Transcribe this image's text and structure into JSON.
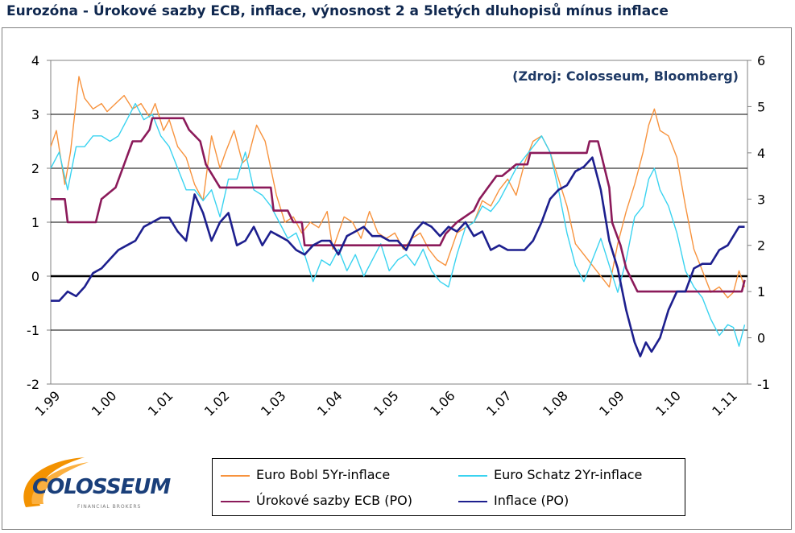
{
  "title": "Eurozóna - Úrokové sazby ECB, inflace, výnosnost 2 a 5letých dluhopisů mínus inflace",
  "source_note": "(Zdroj: Colosseum, Bloomberg)",
  "logo": {
    "text": "COLOSSEUM",
    "subtext": "FINANCIAL BROKERS"
  },
  "colors": {
    "bobl": "#f7933e",
    "schatz": "#3ad3f0",
    "ecb": "#8b1a5a",
    "inflace": "#1d1f8e",
    "title": "#10284f",
    "note": "#1f3a66"
  },
  "chart_data": {
    "type": "line",
    "x_range": [
      1999.0,
      2011.35
    ],
    "x_ticks": [
      "1.99",
      "1.00",
      "1.01",
      "1.02",
      "1.03",
      "1.04",
      "1.05",
      "1.06",
      "1.07",
      "1.08",
      "1.09",
      "1.10",
      "1.11"
    ],
    "x_tick_values": [
      1999,
      2000,
      2001,
      2002,
      2003,
      2004,
      2005,
      2006,
      2007,
      2008,
      2009,
      2010,
      2011
    ],
    "y_left": {
      "range": [
        -2,
        4
      ],
      "ticks": [
        "-2",
        "-1",
        "0",
        "1",
        "2",
        "3",
        "4"
      ],
      "tick_values": [
        -2,
        -1,
        0,
        1,
        2,
        3,
        4
      ]
    },
    "y_right": {
      "range": [
        -1,
        6
      ],
      "ticks": [
        "-1",
        "0",
        "1",
        "2",
        "3",
        "4",
        "5",
        "6"
      ],
      "tick_values": [
        -1,
        0,
        1,
        2,
        3,
        4,
        5,
        6
      ]
    },
    "grid": "horizontal",
    "series": [
      {
        "name": "Euro Bobl 5Yr-inflace",
        "axis": "left",
        "color": "#f7933e",
        "x": [
          1999.0,
          1999.1,
          1999.25,
          1999.35,
          1999.5,
          1999.6,
          1999.75,
          1999.9,
          2000.0,
          2000.15,
          2000.3,
          2000.45,
          2000.6,
          2000.75,
          2000.85,
          2001.0,
          2001.1,
          2001.25,
          2001.4,
          2001.55,
          2001.7,
          2001.85,
          2002.0,
          2002.1,
          2002.25,
          2002.4,
          2002.5,
          2002.65,
          2002.8,
          2002.9,
          2003.0,
          2003.15,
          2003.3,
          2003.45,
          2003.6,
          2003.75,
          2003.9,
          2004.0,
          2004.2,
          2004.35,
          2004.5,
          2004.65,
          2004.8,
          2004.95,
          2005.1,
          2005.25,
          2005.4,
          2005.55,
          2005.7,
          2005.85,
          2006.0,
          2006.2,
          2006.35,
          2006.5,
          2006.65,
          2006.8,
          2006.95,
          2007.1,
          2007.25,
          2007.4,
          2007.55,
          2007.7,
          2007.85,
          2008.0,
          2008.15,
          2008.3,
          2008.45,
          2008.6,
          2008.75,
          2008.9,
          2009.05,
          2009.2,
          2009.35,
          2009.5,
          2009.6,
          2009.7,
          2009.8,
          2009.95,
          2010.1,
          2010.25,
          2010.4,
          2010.55,
          2010.7,
          2010.85,
          2011.0,
          2011.1,
          2011.2,
          2011.3
        ],
        "values": [
          2.4,
          2.7,
          1.7,
          2.3,
          3.7,
          3.3,
          3.1,
          3.2,
          3.05,
          3.2,
          3.35,
          3.1,
          3.2,
          2.95,
          3.2,
          2.7,
          2.9,
          2.4,
          2.2,
          1.7,
          1.4,
          2.6,
          2.0,
          2.3,
          2.7,
          2.1,
          2.2,
          2.8,
          2.5,
          2.0,
          1.5,
          1.0,
          1.1,
          0.8,
          1.0,
          0.9,
          1.2,
          0.5,
          1.1,
          1.0,
          0.7,
          1.2,
          0.8,
          0.7,
          0.8,
          0.5,
          0.7,
          0.8,
          0.5,
          0.3,
          0.2,
          0.8,
          0.9,
          1.0,
          1.4,
          1.3,
          1.6,
          1.8,
          1.5,
          2.1,
          2.5,
          2.6,
          2.3,
          1.8,
          1.3,
          0.6,
          0.4,
          0.2,
          0.0,
          -0.2,
          0.6,
          1.2,
          1.7,
          2.3,
          2.8,
          3.1,
          2.7,
          2.6,
          2.2,
          1.3,
          0.5,
          0.1,
          -0.3,
          -0.2,
          -0.4,
          -0.3,
          0.1,
          -0.2
        ]
      },
      {
        "name": "Euro Schatz 2Yr-inflace",
        "axis": "left",
        "color": "#3ad3f0",
        "x": [
          1999.0,
          1999.15,
          1999.3,
          1999.45,
          1999.6,
          1999.75,
          1999.9,
          2000.05,
          2000.2,
          2000.35,
          2000.5,
          2000.65,
          2000.8,
          2000.95,
          2001.1,
          2001.25,
          2001.4,
          2001.55,
          2001.7,
          2001.85,
          2002.0,
          2002.15,
          2002.3,
          2002.45,
          2002.6,
          2002.75,
          2002.9,
          2003.05,
          2003.2,
          2003.35,
          2003.5,
          2003.65,
          2003.8,
          2003.95,
          2004.1,
          2004.25,
          2004.4,
          2004.55,
          2004.7,
          2004.85,
          2005.0,
          2005.15,
          2005.3,
          2005.45,
          2005.6,
          2005.75,
          2005.9,
          2006.05,
          2006.2,
          2006.35,
          2006.5,
          2006.65,
          2006.8,
          2006.95,
          2007.1,
          2007.25,
          2007.4,
          2007.55,
          2007.7,
          2007.85,
          2008.0,
          2008.15,
          2008.3,
          2008.45,
          2008.6,
          2008.75,
          2008.9,
          2009.05,
          2009.2,
          2009.35,
          2009.5,
          2009.6,
          2009.7,
          2009.8,
          2009.95,
          2010.1,
          2010.25,
          2010.4,
          2010.55,
          2010.7,
          2010.85,
          2011.0,
          2011.1,
          2011.2,
          2011.3
        ],
        "values": [
          2.0,
          2.3,
          1.6,
          2.4,
          2.4,
          2.6,
          2.6,
          2.5,
          2.6,
          2.9,
          3.2,
          2.9,
          3.0,
          2.6,
          2.4,
          2.0,
          1.6,
          1.6,
          1.4,
          1.6,
          1.1,
          1.8,
          1.8,
          2.3,
          1.6,
          1.5,
          1.3,
          1.0,
          0.7,
          0.8,
          0.4,
          -0.1,
          0.3,
          0.2,
          0.5,
          0.1,
          0.4,
          0.0,
          0.3,
          0.6,
          0.1,
          0.3,
          0.4,
          0.2,
          0.5,
          0.1,
          -0.1,
          -0.2,
          0.4,
          0.9,
          1.0,
          1.3,
          1.2,
          1.4,
          1.7,
          2.0,
          2.2,
          2.4,
          2.6,
          2.3,
          1.6,
          0.8,
          0.2,
          -0.1,
          0.3,
          0.7,
          0.2,
          -0.3,
          0.3,
          1.1,
          1.3,
          1.8,
          2.0,
          1.6,
          1.3,
          0.8,
          0.1,
          -0.2,
          -0.4,
          -0.8,
          -1.1,
          -0.9,
          -0.95,
          -1.3,
          -0.9
        ]
      },
      {
        "name": "Úrokové sazby ECB (PO)",
        "axis": "right",
        "color": "#8b1a5a",
        "x": [
          1999.0,
          1999.25,
          1999.3,
          1999.8,
          1999.9,
          2000.15,
          2000.3,
          2000.45,
          2000.6,
          2000.75,
          2000.8,
          2001.35,
          2001.45,
          2001.65,
          2001.75,
          2002.0,
          2002.9,
          2002.95,
          2003.2,
          2003.3,
          2003.45,
          2003.5,
          2005.9,
          2006.0,
          2006.2,
          2006.5,
          2006.6,
          2006.75,
          2006.9,
          2007.0,
          2007.25,
          2007.45,
          2007.5,
          2008.5,
          2008.55,
          2008.7,
          2008.8,
          2008.9,
          2008.95,
          2009.1,
          2009.2,
          2009.3,
          2009.4,
          2011.25,
          2011.3
        ],
        "values": [
          3.0,
          3.0,
          2.5,
          2.5,
          3.0,
          3.25,
          3.75,
          4.25,
          4.25,
          4.5,
          4.75,
          4.75,
          4.5,
          4.25,
          3.75,
          3.25,
          3.25,
          2.75,
          2.75,
          2.5,
          2.5,
          2.0,
          2.0,
          2.25,
          2.5,
          2.75,
          3.0,
          3.25,
          3.5,
          3.5,
          3.75,
          3.75,
          4.0,
          4.0,
          4.25,
          4.25,
          3.75,
          3.25,
          2.5,
          2.0,
          1.5,
          1.25,
          1.0,
          1.0,
          1.25
        ]
      },
      {
        "name": "Inflace (PO)",
        "axis": "right",
        "color": "#1d1f8e",
        "x": [
          1999.0,
          1999.15,
          1999.3,
          1999.45,
          1999.6,
          1999.75,
          1999.9,
          2000.05,
          2000.2,
          2000.35,
          2000.5,
          2000.65,
          2000.8,
          2000.95,
          2001.1,
          2001.25,
          2001.4,
          2001.55,
          2001.7,
          2001.85,
          2002.0,
          2002.15,
          2002.3,
          2002.45,
          2002.6,
          2002.75,
          2002.9,
          2003.05,
          2003.2,
          2003.35,
          2003.5,
          2003.65,
          2003.8,
          2003.95,
          2004.1,
          2004.25,
          2004.4,
          2004.55,
          2004.7,
          2004.85,
          2005.0,
          2005.15,
          2005.3,
          2005.45,
          2005.6,
          2005.75,
          2005.9,
          2006.05,
          2006.2,
          2006.35,
          2006.5,
          2006.65,
          2006.8,
          2006.95,
          2007.1,
          2007.25,
          2007.4,
          2007.55,
          2007.7,
          2007.85,
          2008.0,
          2008.15,
          2008.3,
          2008.45,
          2008.6,
          2008.75,
          2008.9,
          2009.05,
          2009.2,
          2009.35,
          2009.45,
          2009.55,
          2009.65,
          2009.8,
          2009.95,
          2010.1,
          2010.25,
          2010.4,
          2010.55,
          2010.7,
          2010.85,
          2011.0,
          2011.1,
          2011.2,
          2011.3
        ],
        "values": [
          0.8,
          0.8,
          1.0,
          0.9,
          1.1,
          1.4,
          1.5,
          1.7,
          1.9,
          2.0,
          2.1,
          2.4,
          2.5,
          2.6,
          2.6,
          2.3,
          2.1,
          3.1,
          2.7,
          2.1,
          2.5,
          2.7,
          2.0,
          2.1,
          2.4,
          2.0,
          2.3,
          2.2,
          2.1,
          1.9,
          1.8,
          2.0,
          2.1,
          2.1,
          1.8,
          2.2,
          2.3,
          2.4,
          2.2,
          2.2,
          2.1,
          2.1,
          1.9,
          2.3,
          2.5,
          2.4,
          2.2,
          2.4,
          2.3,
          2.5,
          2.2,
          2.3,
          1.9,
          2.0,
          1.9,
          1.9,
          1.9,
          2.1,
          2.5,
          3.0,
          3.2,
          3.3,
          3.6,
          3.7,
          3.9,
          3.2,
          2.1,
          1.5,
          0.6,
          -0.1,
          -0.4,
          -0.1,
          -0.3,
          0.0,
          0.6,
          1.0,
          1.0,
          1.5,
          1.6,
          1.6,
          1.9,
          2.0,
          2.2,
          2.4,
          2.4
        ]
      }
    ]
  }
}
